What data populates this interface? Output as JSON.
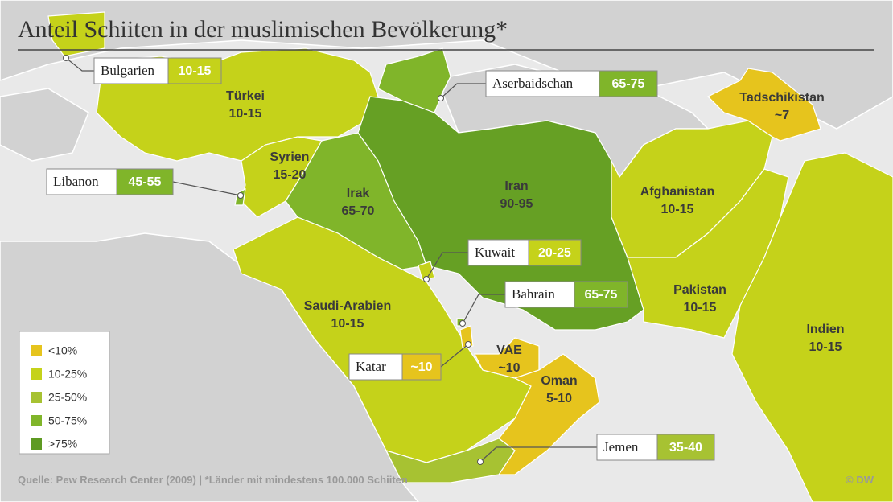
{
  "title": "Anteil Schiiten in der muslimischen Bevölkerung*",
  "legend": [
    {
      "label": "<10%",
      "color": "#e6c41d"
    },
    {
      "label": "10-25%",
      "color": "#c5d21a"
    },
    {
      "label": "25-50%",
      "color": "#a7c232"
    },
    {
      "label": "50-75%",
      "color": "#80b52a"
    },
    {
      "label": ">75%",
      "color": "#5e9a22"
    }
  ],
  "regions": [
    {
      "name": "Türkei",
      "value": "10-15",
      "color": "#c5d21a"
    },
    {
      "name": "Syrien",
      "value": "15-20",
      "color": "#c5d21a"
    },
    {
      "name": "Irak",
      "value": "65-70",
      "color": "#80b52a"
    },
    {
      "name": "Iran",
      "value": "90-95",
      "color": "#66a024"
    },
    {
      "name": "Saudi-Arabien",
      "value": "10-15",
      "color": "#c5d21a"
    },
    {
      "name": "VAE",
      "value": "~10",
      "color": "#e6c41d"
    },
    {
      "name": "Oman",
      "value": "5-10",
      "color": "#e6c41d"
    },
    {
      "name": "Afghanistan",
      "value": "10-15",
      "color": "#c5d21a"
    },
    {
      "name": "Pakistan",
      "value": "10-15",
      "color": "#c5d21a"
    },
    {
      "name": "Indien",
      "value": "10-15",
      "color": "#c5d21a"
    },
    {
      "name": "Tadschikistan",
      "value": "~7",
      "color": "#e6c41d"
    },
    {
      "name": "Bulgarien",
      "value": "10-15",
      "color": "#c5d21a"
    },
    {
      "name": "Aserbaidschan",
      "value": "65-75",
      "color": "#80b52a"
    },
    {
      "name": "Libanon",
      "value": "45-55",
      "color": "#80b52a"
    },
    {
      "name": "Kuwait",
      "value": "20-25",
      "color": "#c5d21a"
    },
    {
      "name": "Bahrain",
      "value": "65-75",
      "color": "#80b52a"
    },
    {
      "name": "Katar",
      "value": "~10",
      "color": "#e6c41d"
    },
    {
      "name": "Jemen",
      "value": "35-40",
      "color": "#a7c232"
    }
  ],
  "source": "Quelle: Pew Research Center (2009) | *Länder mit mindestens 100.000 Schiiten",
  "credit": "© DW"
}
